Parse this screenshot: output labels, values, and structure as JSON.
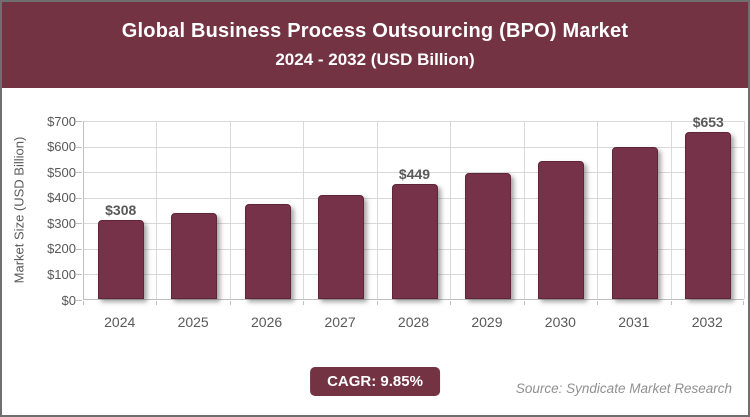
{
  "header": {
    "title_line1": "Global Business Process Outsourcing (BPO) Market",
    "title_line2": "2024 - 2032 (USD Billion)"
  },
  "chart_data": {
    "type": "bar",
    "title": "Global Business Process Outsourcing (BPO) Market 2024 - 2032 (USD Billion)",
    "categories": [
      "2024",
      "2025",
      "2026",
      "2027",
      "2028",
      "2029",
      "2030",
      "2031",
      "2032"
    ],
    "values": [
      308,
      338,
      372,
      408,
      449,
      493,
      541,
      594,
      653
    ],
    "annotations": [
      {
        "category": "2024",
        "text": "$308"
      },
      {
        "category": "2028",
        "text": "$449"
      },
      {
        "category": "2032",
        "text": "$653"
      }
    ],
    "xlabel": "",
    "ylabel": "Market Size (USD Billion)",
    "ylim": [
      0,
      700
    ],
    "yticks": [
      "$0",
      "$100",
      "$200",
      "$300",
      "$400",
      "$500",
      "$600",
      "$700"
    ],
    "grid": true,
    "legend": "none",
    "bar_color": "#763249",
    "grid_color": "#d9d9d9",
    "axis_color": "#bfbfbf",
    "tick_text_color": "#595959"
  },
  "footer": {
    "cagr_label": "CAGR: 9.85%",
    "source": "Source: Syndicate Market Research"
  },
  "colors": {
    "header_bg": "#733343",
    "accent": "#733343",
    "canvas_border": "#6f6f6f",
    "source_text": "#909090"
  }
}
